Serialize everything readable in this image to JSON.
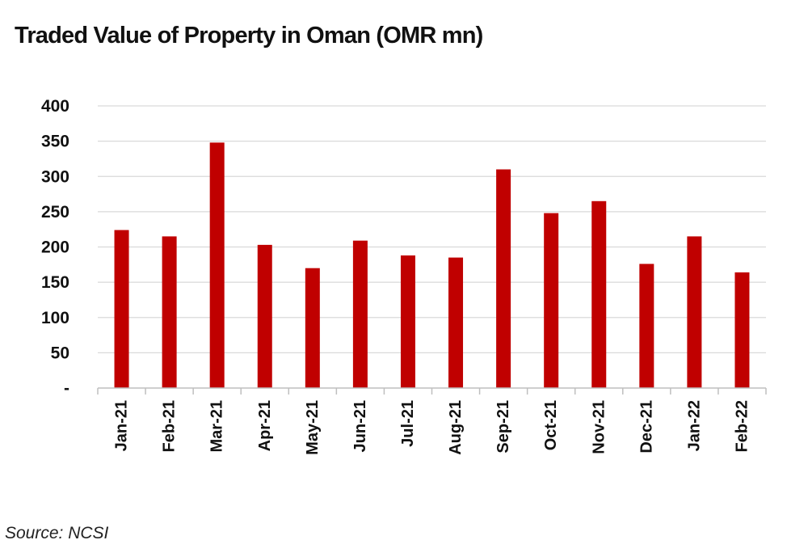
{
  "chart_data": {
    "type": "bar",
    "title": "Traded Value of Property in Oman (OMR mn)",
    "xlabel": "",
    "ylabel": "",
    "categories": [
      "Jan-21",
      "Feb-21",
      "Mar-21",
      "Apr-21",
      "May-21",
      "Jun-21",
      "Jul-21",
      "Aug-21",
      "Sep-21",
      "Oct-21",
      "Nov-21",
      "Dec-21",
      "Jan-22",
      "Feb-22"
    ],
    "values": [
      224,
      215,
      348,
      203,
      170,
      209,
      188,
      185,
      310,
      248,
      265,
      176,
      215,
      164
    ],
    "ylim": [
      0,
      400
    ],
    "yticks": [
      {
        "value": 0,
        "label": "-"
      },
      {
        "value": 50,
        "label": "50"
      },
      {
        "value": 100,
        "label": "100"
      },
      {
        "value": 150,
        "label": "150"
      },
      {
        "value": 200,
        "label": "200"
      },
      {
        "value": 250,
        "label": "250"
      },
      {
        "value": 300,
        "label": "300"
      },
      {
        "value": 350,
        "label": "350"
      },
      {
        "value": 400,
        "label": "400"
      }
    ],
    "grid": true,
    "bar_color": "#c00000",
    "grid_color": "#d9d9d9"
  },
  "source": "Source: NCSI"
}
